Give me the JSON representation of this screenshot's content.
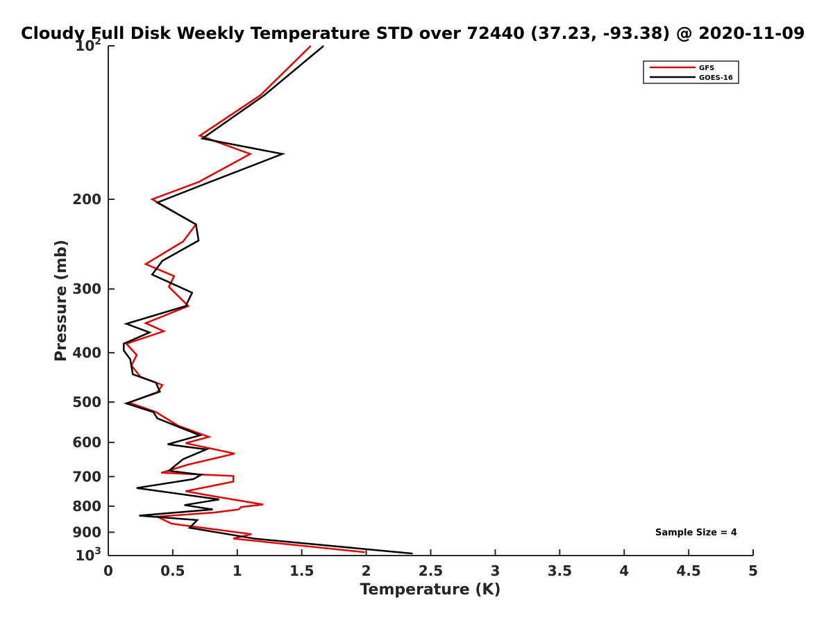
{
  "chart_data": {
    "type": "line",
    "title": "Cloudy Full Disk Weekly Temperature STD over 72440 (37.23, -93.38) @ 2020-11-09",
    "xlabel": "Temperature (K)",
    "ylabel": "Pressure (mb)",
    "xlim": [
      0,
      5
    ],
    "ylim": [
      100,
      1000
    ],
    "y_scale": "log",
    "y_reversed": true,
    "x_ticks": [
      0,
      0.5,
      1,
      1.5,
      2,
      2.5,
      3,
      3.5,
      4,
      4.5,
      5
    ],
    "x_tick_labels": [
      "0",
      "0.5",
      "1",
      "1.5",
      "2",
      "2.5",
      "3",
      "3.5",
      "4",
      "4.5",
      "5"
    ],
    "y_ticks": [
      100,
      200,
      300,
      400,
      500,
      600,
      700,
      800,
      900,
      1000
    ],
    "y_tick_labels": [
      {
        "base": "10",
        "exp": "2"
      },
      {
        "base": "200",
        "exp": ""
      },
      {
        "base": "300",
        "exp": ""
      },
      {
        "base": "400",
        "exp": ""
      },
      {
        "base": "500",
        "exp": ""
      },
      {
        "base": "600",
        "exp": ""
      },
      {
        "base": "700",
        "exp": ""
      },
      {
        "base": "800",
        "exp": ""
      },
      {
        "base": "900",
        "exp": ""
      },
      {
        "base": "10",
        "exp": "3"
      }
    ],
    "grid": false,
    "legend_position": "top-right",
    "annotation": "Sample Size = 4",
    "series": [
      {
        "name": "GFS",
        "color": "#e00000",
        "points": [
          [
            1.57,
            100
          ],
          [
            1.18,
            125
          ],
          [
            0.71,
            150
          ],
          [
            1.1,
            163
          ],
          [
            0.7,
            185
          ],
          [
            0.34,
            200
          ],
          [
            0.68,
            224
          ],
          [
            0.58,
            242
          ],
          [
            0.29,
            268
          ],
          [
            0.51,
            283
          ],
          [
            0.47,
            297
          ],
          [
            0.62,
            324
          ],
          [
            0.29,
            350
          ],
          [
            0.43,
            363
          ],
          [
            0.14,
            384
          ],
          [
            0.22,
            404
          ],
          [
            0.18,
            424
          ],
          [
            0.25,
            446
          ],
          [
            0.42,
            463
          ],
          [
            0.38,
            478
          ],
          [
            0.16,
            501
          ],
          [
            0.37,
            523
          ],
          [
            0.54,
            556
          ],
          [
            0.78,
            585
          ],
          [
            0.6,
            602
          ],
          [
            0.98,
            631
          ],
          [
            0.62,
            663
          ],
          [
            0.41,
            688
          ],
          [
            0.97,
            698
          ],
          [
            0.97,
            716
          ],
          [
            0.6,
            748
          ],
          [
            0.83,
            766
          ],
          [
            1.2,
            794
          ],
          [
            1.03,
            803
          ],
          [
            1.01,
            812
          ],
          [
            0.83,
            823
          ],
          [
            0.38,
            839
          ],
          [
            0.49,
            866
          ],
          [
            1.11,
            908
          ],
          [
            0.97,
            926
          ],
          [
            1.18,
            938
          ],
          [
            1.99,
            985
          ]
        ]
      },
      {
        "name": "GOES-16",
        "color": "#000000",
        "points": [
          [
            1.67,
            100
          ],
          [
            1.21,
            125
          ],
          [
            0.73,
            152
          ],
          [
            1.35,
            163
          ],
          [
            0.74,
            187
          ],
          [
            0.38,
            203
          ],
          [
            0.68,
            224
          ],
          [
            0.7,
            241
          ],
          [
            0.42,
            264
          ],
          [
            0.34,
            281
          ],
          [
            0.65,
            305
          ],
          [
            0.6,
            324
          ],
          [
            0.14,
            351
          ],
          [
            0.32,
            365
          ],
          [
            0.12,
            384
          ],
          [
            0.12,
            396
          ],
          [
            0.17,
            412
          ],
          [
            0.19,
            441
          ],
          [
            0.37,
            458
          ],
          [
            0.4,
            477
          ],
          [
            0.14,
            503
          ],
          [
            0.35,
            523
          ],
          [
            0.38,
            538
          ],
          [
            0.71,
            581
          ],
          [
            0.46,
            605
          ],
          [
            0.76,
            619
          ],
          [
            0.58,
            647
          ],
          [
            0.47,
            682
          ],
          [
            0.72,
            694
          ],
          [
            0.66,
            708
          ],
          [
            0.22,
            737
          ],
          [
            0.86,
            776
          ],
          [
            0.59,
            796
          ],
          [
            0.81,
            812
          ],
          [
            0.24,
            835
          ],
          [
            0.69,
            852
          ],
          [
            0.63,
            882
          ],
          [
            1.14,
            927
          ],
          [
            2.36,
            991
          ]
        ]
      }
    ]
  }
}
